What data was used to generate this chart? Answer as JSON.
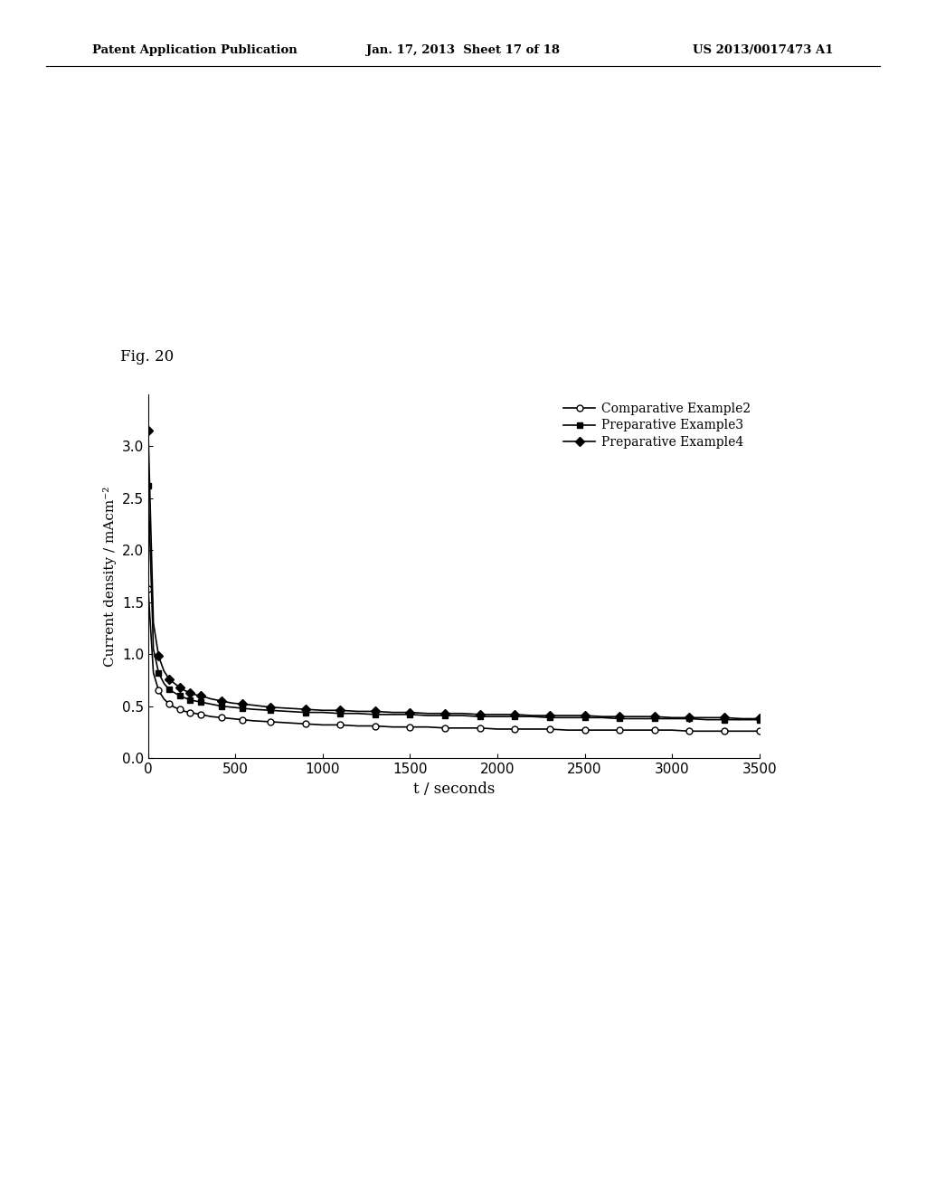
{
  "fig_label": "Fig. 20",
  "xlabel": "t / seconds",
  "ylabel": "Current density / mAcm⁻²",
  "xlim": [
    0,
    3500
  ],
  "ylim": [
    0.0,
    3.5
  ],
  "xticks": [
    0,
    500,
    1000,
    1500,
    2000,
    2500,
    3000,
    3500
  ],
  "yticks": [
    0.0,
    0.5,
    1.0,
    1.5,
    2.0,
    2.5,
    3.0
  ],
  "background_color": "#ffffff",
  "header_left": "Patent Application Publication",
  "header_mid": "Jan. 17, 2013  Sheet 17 of 18",
  "header_right": "US 2013/0017473 A1",
  "series": {
    "comp2": {
      "color": "#000000",
      "marker": "o",
      "markersize": 5,
      "markerfacecolor": "white",
      "label": "Comparative Example2",
      "x": [
        0,
        30,
        60,
        90,
        120,
        150,
        180,
        210,
        240,
        270,
        300,
        360,
        420,
        480,
        540,
        600,
        700,
        800,
        900,
        1000,
        1100,
        1200,
        1300,
        1400,
        1500,
        1600,
        1700,
        1800,
        1900,
        2000,
        2100,
        2200,
        2300,
        2400,
        2500,
        2600,
        2700,
        2800,
        2900,
        3000,
        3100,
        3200,
        3300,
        3400,
        3500
      ],
      "y": [
        1.63,
        0.82,
        0.65,
        0.57,
        0.52,
        0.49,
        0.47,
        0.45,
        0.44,
        0.43,
        0.42,
        0.4,
        0.39,
        0.38,
        0.37,
        0.36,
        0.35,
        0.34,
        0.33,
        0.32,
        0.32,
        0.31,
        0.31,
        0.3,
        0.3,
        0.3,
        0.29,
        0.29,
        0.29,
        0.28,
        0.28,
        0.28,
        0.28,
        0.27,
        0.27,
        0.27,
        0.27,
        0.27,
        0.27,
        0.27,
        0.26,
        0.26,
        0.26,
        0.26,
        0.26
      ]
    },
    "prep3": {
      "color": "#000000",
      "marker": "s",
      "markersize": 5,
      "markerfacecolor": "black",
      "label": "Preparative Example3",
      "x": [
        0,
        30,
        60,
        90,
        120,
        150,
        180,
        210,
        240,
        270,
        300,
        360,
        420,
        480,
        540,
        600,
        700,
        800,
        900,
        1000,
        1100,
        1200,
        1300,
        1400,
        1500,
        1600,
        1700,
        1800,
        1900,
        2000,
        2100,
        2200,
        2300,
        2400,
        2500,
        2600,
        2700,
        2800,
        2900,
        3000,
        3100,
        3200,
        3300,
        3400,
        3500
      ],
      "y": [
        2.62,
        1.05,
        0.82,
        0.72,
        0.66,
        0.63,
        0.6,
        0.58,
        0.56,
        0.55,
        0.54,
        0.52,
        0.5,
        0.49,
        0.48,
        0.47,
        0.46,
        0.45,
        0.44,
        0.44,
        0.43,
        0.43,
        0.42,
        0.42,
        0.42,
        0.41,
        0.41,
        0.41,
        0.4,
        0.4,
        0.4,
        0.4,
        0.39,
        0.39,
        0.39,
        0.39,
        0.38,
        0.38,
        0.38,
        0.38,
        0.38,
        0.37,
        0.37,
        0.37,
        0.37
      ]
    },
    "prep4": {
      "color": "#000000",
      "marker": "D",
      "markersize": 5,
      "markerfacecolor": "black",
      "label": "Preparative Example4",
      "x": [
        0,
        30,
        60,
        90,
        120,
        150,
        180,
        210,
        240,
        270,
        300,
        360,
        420,
        480,
        540,
        600,
        700,
        800,
        900,
        1000,
        1100,
        1200,
        1300,
        1400,
        1500,
        1600,
        1700,
        1800,
        1900,
        2000,
        2100,
        2200,
        2300,
        2400,
        2500,
        2600,
        2700,
        2800,
        2900,
        3000,
        3100,
        3200,
        3300,
        3400,
        3500
      ],
      "y": [
        3.15,
        1.3,
        0.98,
        0.84,
        0.76,
        0.72,
        0.68,
        0.65,
        0.63,
        0.61,
        0.6,
        0.57,
        0.55,
        0.53,
        0.52,
        0.51,
        0.49,
        0.48,
        0.47,
        0.46,
        0.46,
        0.45,
        0.45,
        0.44,
        0.44,
        0.43,
        0.43,
        0.43,
        0.42,
        0.42,
        0.42,
        0.41,
        0.41,
        0.41,
        0.41,
        0.4,
        0.4,
        0.4,
        0.4,
        0.39,
        0.39,
        0.39,
        0.39,
        0.38,
        0.38
      ]
    }
  }
}
